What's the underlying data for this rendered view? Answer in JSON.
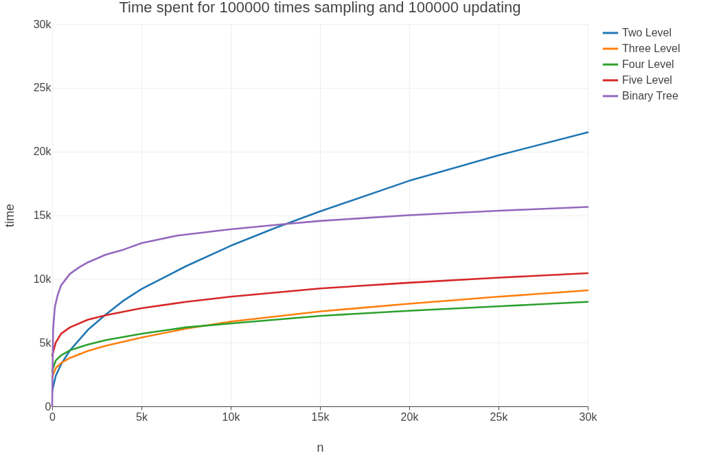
{
  "chart_data": {
    "type": "line",
    "title": "Time spent for 100000 times sampling and 100000 updating",
    "xlabel": "n",
    "ylabel": "time",
    "xlim": [
      0,
      30000
    ],
    "ylim": [
      0,
      30000
    ],
    "xticks": [
      0,
      {
        "value": 5000,
        "label": "5k"
      },
      {
        "value": 10000,
        "label": "10k"
      },
      {
        "value": 15000,
        "label": "15k"
      },
      {
        "value": 20000,
        "label": "20k"
      },
      {
        "value": 25000,
        "label": "25k"
      },
      {
        "value": 30000,
        "label": "30k"
      }
    ],
    "yticks": [
      0,
      {
        "value": 5000,
        "label": "5k"
      },
      {
        "value": 10000,
        "label": "10k"
      },
      {
        "value": 15000,
        "label": "15k"
      },
      {
        "value": 20000,
        "label": "20k"
      },
      {
        "value": 25000,
        "label": "25k"
      },
      {
        "value": 30000,
        "label": "30k"
      }
    ],
    "grid": true,
    "legend": "top right",
    "marker": "none",
    "line_style": "solid",
    "series": [
      {
        "name": "Two Level",
        "color": "#1f77b4",
        "x": [
          0,
          200,
          500,
          1000,
          2000,
          3000,
          4000,
          5000,
          7500,
          10000,
          12500,
          15000,
          20000,
          25000,
          30000
        ],
        "values": [
          1200,
          2400,
          3300,
          4400,
          6000,
          7200,
          8300,
          9200,
          11000,
          12600,
          14000,
          15300,
          17700,
          19700,
          21500
        ]
      },
      {
        "name": "Three Level",
        "color": "#ff7f0e",
        "x": [
          0,
          200,
          500,
          1000,
          2000,
          3000,
          5000,
          7500,
          10000,
          15000,
          20000,
          25000,
          30000
        ],
        "values": [
          2300,
          3000,
          3400,
          3800,
          4350,
          4750,
          5400,
          6100,
          6650,
          7450,
          8050,
          8600,
          9100
        ]
      },
      {
        "name": "Four Level",
        "color": "#2ca02c",
        "x": [
          0,
          200,
          500,
          1000,
          2000,
          3000,
          5000,
          7500,
          10000,
          15000,
          20000,
          25000,
          30000
        ],
        "values": [
          2800,
          3600,
          4000,
          4400,
          4850,
          5200,
          5700,
          6200,
          6500,
          7100,
          7500,
          7850,
          8200
        ]
      },
      {
        "name": "Five Level",
        "color": "#d62728",
        "x": [
          0,
          200,
          500,
          1000,
          2000,
          3000,
          5000,
          7500,
          10000,
          15000,
          20000,
          25000,
          30000
        ],
        "values": [
          4000,
          5000,
          5700,
          6200,
          6800,
          7150,
          7700,
          8200,
          8600,
          9250,
          9700,
          10100,
          10450
        ]
      },
      {
        "name": "Binary Tree",
        "color": "#9467bd",
        "x": [
          0,
          50,
          150,
          300,
          500,
          1000,
          1500,
          2000,
          3000,
          4000,
          5000,
          7000,
          10000,
          13000,
          15000,
          20000,
          25000,
          30000
        ],
        "values": [
          0,
          6000,
          7800,
          8700,
          9500,
          10400,
          10900,
          11300,
          11900,
          12300,
          12800,
          13400,
          13900,
          14300,
          14550,
          15000,
          15350,
          15650
        ]
      }
    ]
  }
}
